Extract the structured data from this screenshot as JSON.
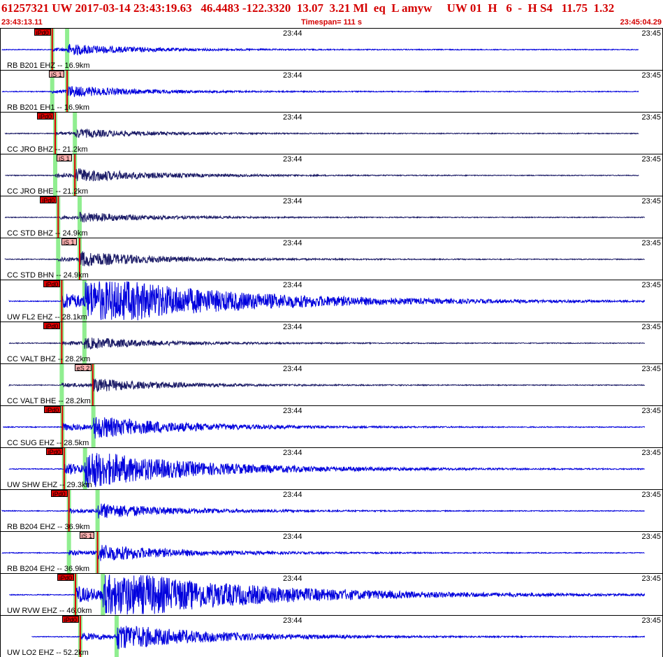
{
  "header": {
    "title": "61257321 UW 2017-03-14 23:43:19.63   46.4483 -122.3320  13.07  3.21 Ml  eq  L amyw     UW 01  H   6  -  H S4   11.75  1.32",
    "start_time": "23:43:13.11",
    "timespan": "Timespan= 111 s",
    "end_time": "23:45:04.29"
  },
  "colors": {
    "header_text": "#d40000",
    "trace_blue": "#0000dd",
    "trace_navy": "#1a1a66",
    "pick_p": "#e00000",
    "pick_s": "#ffb0b0",
    "phase_highlight": "#90ee90"
  },
  "panels": [
    {
      "label": "RB B201 EHZ -- 16.9km",
      "tick_mid": "23:44",
      "tick_end": "23:45",
      "trace": "blue",
      "pick": "iPd0",
      "pick_type": "p",
      "p_sec": 7.0,
      "s_sec": 9.5,
      "start_sec": 0,
      "end_sec": 107,
      "amp": 0.55
    },
    {
      "label": "RB B201 EH1 -- 16.9km",
      "tick_mid": "23:44",
      "tick_end": "23:45",
      "trace": "blue",
      "pick": "iS 1",
      "pick_type": "s",
      "p_sec": 7.0,
      "s_sec": 9.5,
      "start_sec": 0,
      "end_sec": 107,
      "amp": 0.55
    },
    {
      "label": "CC JRO BHZ -- 21.2km",
      "tick_mid": "23:44",
      "tick_end": "23:45",
      "trace": "navy",
      "pick": "iPd0",
      "pick_type": "p",
      "p_sec": 7.5,
      "s_sec": 10.8,
      "start_sec": 0.5,
      "end_sec": 107,
      "amp": 0.45
    },
    {
      "label": "CC JRO BHE -- 21.2km",
      "tick_mid": "23:44",
      "tick_end": "23:45",
      "trace": "navy",
      "pick": "iS 1",
      "pick_type": "s",
      "p_sec": 7.5,
      "s_sec": 10.8,
      "start_sec": 0.5,
      "end_sec": 107,
      "amp": 0.7
    },
    {
      "label": "CC STD BHZ -- 24.9km",
      "tick_mid": "23:44",
      "tick_end": "23:45",
      "trace": "navy",
      "pick": "iPd0",
      "pick_type": "p",
      "p_sec": 8.0,
      "s_sec": 11.6,
      "start_sec": 0.5,
      "end_sec": 108,
      "amp": 0.5
    },
    {
      "label": "CC STD BHN -- 24.9km",
      "tick_mid": "23:44",
      "tick_end": "23:45",
      "trace": "navy",
      "pick": "iS 1",
      "pick_type": "s",
      "p_sec": 8.0,
      "s_sec": 11.6,
      "start_sec": 0.5,
      "end_sec": 108,
      "amp": 0.8
    },
    {
      "label": "UW FL2 EHZ -- 28.1km",
      "tick_mid": "23:44",
      "tick_end": "23:45",
      "trace": "blue",
      "pick": "iPd0",
      "pick_type": "p",
      "p_sec": 8.6,
      "s_sec": 12.4,
      "start_sec": 1.2,
      "end_sec": 108,
      "amp": 3.0
    },
    {
      "label": "CC VALT BHZ -- 28.2km",
      "tick_mid": "23:44",
      "tick_end": "23:45",
      "trace": "navy",
      "pick": "iPd0",
      "pick_type": "p",
      "p_sec": 8.6,
      "s_sec": 12.4,
      "start_sec": 1.2,
      "end_sec": 108,
      "amp": 0.6
    },
    {
      "label": "CC VALT BHE -- 28.2km",
      "tick_mid": "23:44",
      "tick_end": "23:45",
      "trace": "navy",
      "pick": "eS 2",
      "pick_type": "s",
      "p_sec": 8.6,
      "s_sec": 13.8,
      "start_sec": 1.2,
      "end_sec": 108,
      "amp": 0.7
    },
    {
      "label": "CC SUG EHZ -- 28.5km",
      "tick_mid": "23:44",
      "tick_end": "23:45",
      "trace": "blue",
      "pick": "iPd0",
      "pick_type": "p",
      "p_sec": 8.7,
      "s_sec": 13.9,
      "start_sec": 0.2,
      "end_sec": 108,
      "amp": 1.2
    },
    {
      "label": "UW SHW EHZ -- 29.3km",
      "tick_mid": "23:44",
      "tick_end": "23:45",
      "trace": "blue",
      "pick": "iPd0",
      "pick_type": "p",
      "p_sec": 9.0,
      "s_sec": 12.5,
      "start_sec": 1.2,
      "end_sec": 108,
      "amp": 2.0
    },
    {
      "label": "RB B204 EHZ -- 36.9km",
      "tick_mid": "23:44",
      "tick_end": "23:45",
      "trace": "blue",
      "pick": "iPd0",
      "pick_type": "p",
      "p_sec": 9.8,
      "s_sec": 14.6,
      "start_sec": 0,
      "end_sec": 108,
      "amp": 0.8
    },
    {
      "label": "RB B204 EH2 -- 36.9km",
      "tick_mid": "23:44",
      "tick_end": "23:45",
      "trace": "blue",
      "pick": "iS 1",
      "pick_type": "s",
      "p_sec": 9.8,
      "s_sec": 14.6,
      "start_sec": 0,
      "end_sec": 108,
      "amp": 0.9
    },
    {
      "label": "UW RVW EHZ -- 46.0km",
      "tick_mid": "23:44",
      "tick_end": "23:45",
      "trace": "blue",
      "pick": "iPd0",
      "pick_type": "p",
      "p_sec": 10.9,
      "s_sec": 15.5,
      "start_sec": 1.2,
      "end_sec": 108,
      "amp": 3.0
    },
    {
      "label": "UW LO2 EHZ -- 52.2km",
      "tick_mid": "23:44",
      "tick_end": "23:45",
      "trace": "blue",
      "pick": "iPd0",
      "pick_type": "p",
      "p_sec": 11.7,
      "s_sec": 17.8,
      "start_sec": 5.0,
      "end_sec": 108,
      "amp": 1.4
    }
  ]
}
